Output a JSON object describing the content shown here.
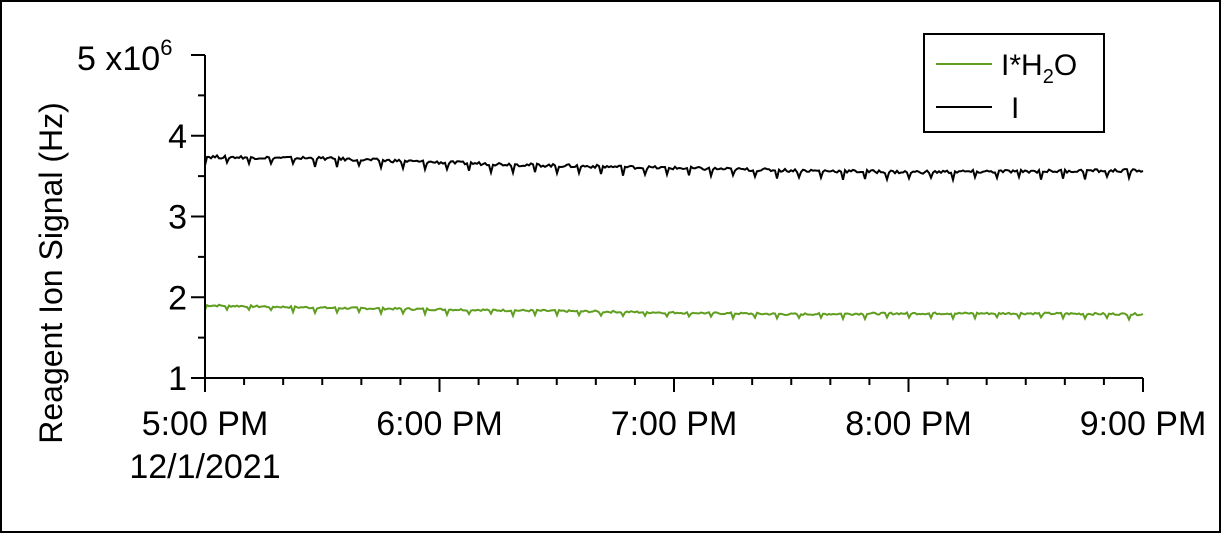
{
  "chart_data": {
    "type": "line",
    "ylabel": "Reagent Ion Signal (Hz)",
    "ylim": [
      1,
      5
    ],
    "y_multiplier_label": "x10",
    "y_multiplier_exp": "6",
    "y_ticks": [
      {
        "value": 1,
        "label": "1"
      },
      {
        "value": 2,
        "label": "2"
      },
      {
        "value": 3,
        "label": "3"
      },
      {
        "value": 4,
        "label": "4"
      },
      {
        "value": 5,
        "label": "5"
      }
    ],
    "xlim": [
      "2021-12-01 17:00",
      "2021-12-01 21:00"
    ],
    "x_ticks": [
      {
        "value": "2021-12-01 17:00",
        "label": "5:00 PM",
        "sublabel": "12/1/2021"
      },
      {
        "value": "2021-12-01 18:00",
        "label": "6:00 PM"
      },
      {
        "value": "2021-12-01 19:00",
        "label": "7:00 PM"
      },
      {
        "value": "2021-12-01 20:00",
        "label": "8:00 PM"
      },
      {
        "value": "2021-12-01 21:00",
        "label": "9:00 PM"
      }
    ],
    "x_minor_ticks_per_major": 6,
    "legend_placement": "top-right",
    "grid": false,
    "series": [
      {
        "name": "I*H2O",
        "legend": {
          "base": "I*H",
          "sub": "2",
          "tail": "O"
        },
        "color": "#5f9e1f",
        "x": [
          "2021-12-01 17:00",
          "2021-12-01 17:30",
          "2021-12-01 18:00",
          "2021-12-01 18:30",
          "2021-12-01 19:00",
          "2021-12-01 19:30",
          "2021-12-01 20:00",
          "2021-12-01 20:30",
          "2021-12-01 21:00"
        ],
        "y": [
          1.9,
          1.87,
          1.85,
          1.83,
          1.81,
          1.79,
          1.8,
          1.8,
          1.79
        ]
      },
      {
        "name": "I",
        "legend": {
          "base": "I",
          "sub": "",
          "tail": ""
        },
        "color": "#000000",
        "x": [
          "2021-12-01 17:00",
          "2021-12-01 17:30",
          "2021-12-01 18:00",
          "2021-12-01 18:30",
          "2021-12-01 19:00",
          "2021-12-01 19:30",
          "2021-12-01 20:00",
          "2021-12-01 20:30",
          "2021-12-01 21:00"
        ],
        "y": [
          3.74,
          3.72,
          3.67,
          3.63,
          3.6,
          3.57,
          3.55,
          3.56,
          3.57
        ]
      }
    ]
  }
}
